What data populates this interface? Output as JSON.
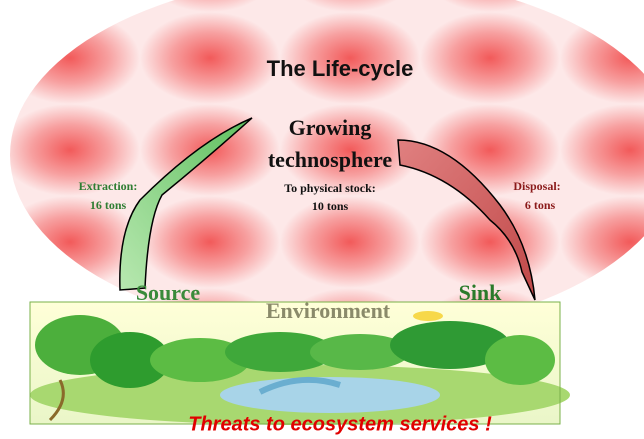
{
  "title": "The Life-cycle",
  "technosphere": {
    "label": [
      "Growing",
      "technosphere"
    ],
    "stock_label": "To physical stock:",
    "stock_amount": "10 tons"
  },
  "flows": [
    {
      "label": "Extraction:",
      "amount": "16 tons"
    },
    {
      "label": "Disposal:",
      "amount": "6 tons"
    }
  ],
  "nodes": {
    "source": "Source",
    "sink": "Sink",
    "environment": "Environment"
  },
  "footer": "Threats to ecosystem services !"
}
